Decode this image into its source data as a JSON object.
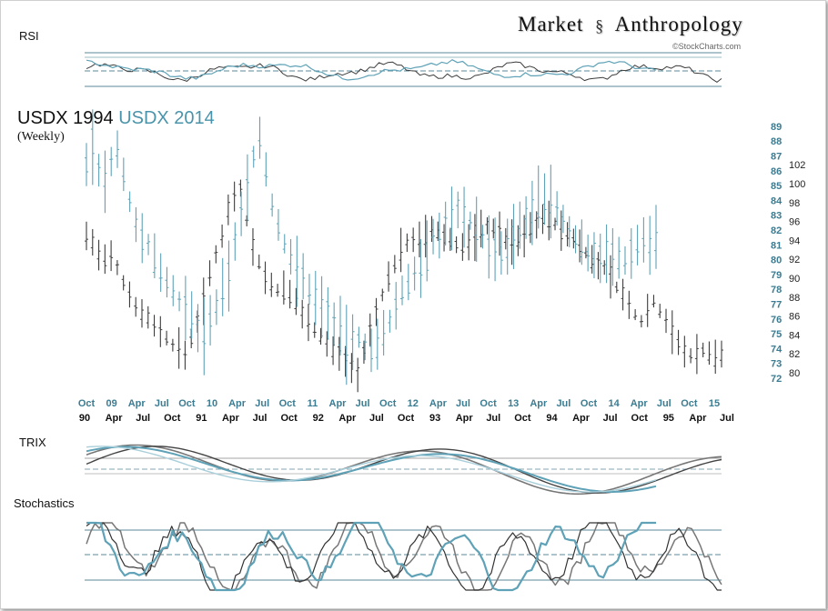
{
  "header": {
    "brand_left": "Market",
    "brand_right": "Anthropology",
    "copyright": "©StockCharts.com"
  },
  "labels": {
    "rsi": "RSI",
    "trix": "TRIX",
    "stoch": "Stochastics",
    "title_1994": "USDX 1994",
    "title_2014": "USDX 2014",
    "subtitle": "(Weekly)"
  },
  "colors": {
    "s1994": "#3d3d3d",
    "s2014": "#5fa2b7",
    "axis2014": "#3b7c92",
    "grid": "#5b8a9a"
  },
  "chart_data": {
    "type": "line",
    "overlay": "weekly price bars, two vertically-aligned periods",
    "series": [
      {
        "name": "USDX 1994",
        "axis": "right",
        "ylim": [
          79,
          103
        ],
        "tick_labels": [
          "80",
          "82",
          "84",
          "86",
          "88",
          "90",
          "92",
          "94",
          "96",
          "98",
          "100",
          "102"
        ],
        "period_labels": [
          "90",
          "Apr",
          "Jul",
          "Oct",
          "91",
          "Apr",
          "Jul",
          "Oct",
          "92",
          "Apr",
          "Jul",
          "Oct",
          "93",
          "Apr",
          "Jul",
          "Oct",
          "94",
          "Apr",
          "Jul",
          "Oct",
          "95",
          "Apr",
          "Jul"
        ],
        "values": [
          94.5,
          93.8,
          92.4,
          91.8,
          92.2,
          91.0,
          89.5,
          88.3,
          87.1,
          86.2,
          85.8,
          85.1,
          84.3,
          83.6,
          82.9,
          82.5,
          82.0,
          83.5,
          85.5,
          87.8,
          90.3,
          92.5,
          94.6,
          97.2,
          98.8,
          99.6,
          96.0,
          93.5,
          91.6,
          90.2,
          89.1,
          88.7,
          88.8,
          88.1,
          87.5,
          86.3,
          85.4,
          84.6,
          83.8,
          83.0,
          82.3,
          82.0,
          81.4,
          80.6,
          80.0,
          82.0,
          84.5,
          86.4,
          88.2,
          90.0,
          91.5,
          93.0,
          93.8,
          94.2,
          93.9,
          94.5,
          95.1,
          94.8,
          94.3,
          94.0,
          93.6,
          93.2,
          93.8,
          94.6,
          95.2,
          95.6,
          95.2,
          94.8,
          94.2,
          93.9,
          94.0,
          94.6,
          95.3,
          95.8,
          96.4,
          96.0,
          95.7,
          95.1,
          94.5,
          94.2,
          93.5,
          92.7,
          91.8,
          91.4,
          91.0,
          90.3,
          89.0,
          88.2,
          87.0,
          86.1,
          85.4,
          86.8,
          87.5,
          86.5,
          85.6,
          84.4,
          83.1,
          82.2,
          81.8,
          82.1,
          82.4,
          82.0,
          81.6,
          82.0
        ]
      },
      {
        "name": "USDX 2014",
        "axis": "left",
        "ylim": [
          71.5,
          89
        ],
        "tick_labels": [
          "72",
          "73",
          "74",
          "75",
          "76",
          "77",
          "78",
          "79",
          "80",
          "81",
          "82",
          "83",
          "84",
          "85",
          "86",
          "87",
          "88",
          "89"
        ],
        "period_labels": [
          "Oct",
          "09",
          "Apr",
          "Jul",
          "Oct",
          "10",
          "Apr",
          "Jul",
          "Oct",
          "11",
          "Apr",
          "Jul",
          "Oct",
          "12",
          "Apr",
          "Jul",
          "Oct",
          "13",
          "Apr",
          "Jul",
          "Oct",
          "14",
          "Apr",
          "Jul",
          "Oct",
          "15"
        ],
        "values": [
          86.5,
          87.8,
          86.0,
          85.2,
          86.7,
          87.5,
          85.6,
          84.0,
          82.5,
          81.4,
          80.9,
          80.0,
          79.3,
          78.5,
          77.9,
          77.2,
          76.6,
          76.0,
          75.5,
          75.1,
          75.8,
          76.7,
          77.8,
          79.2,
          81.3,
          83.0,
          85.0,
          87.0,
          88.2,
          86.0,
          83.6,
          82.2,
          81.0,
          80.2,
          79.5,
          78.7,
          78.0,
          77.5,
          77.0,
          76.5,
          75.8,
          75.2,
          74.6,
          74.3,
          74.7,
          74.2,
          73.9,
          74.1,
          74.8,
          75.8,
          76.9,
          77.8,
          78.4,
          79.2,
          79.6,
          80.3,
          81.4,
          81.8,
          82.4,
          82.9,
          83.5,
          83.1,
          82.6,
          82.1,
          81.5,
          81.0,
          80.7,
          80.3,
          80.9,
          81.5,
          82.2,
          82.8,
          83.4,
          84.0,
          83.8,
          84.1,
          83.5,
          82.6,
          81.9,
          81.3,
          81.0,
          80.6,
          80.4,
          80.3,
          80.5,
          80.3,
          80.0,
          79.9,
          80.6,
          81.0,
          81.4,
          81.2,
          81.6
        ]
      }
    ],
    "panels": [
      "RSI",
      "TRIX",
      "Stochastics"
    ]
  }
}
